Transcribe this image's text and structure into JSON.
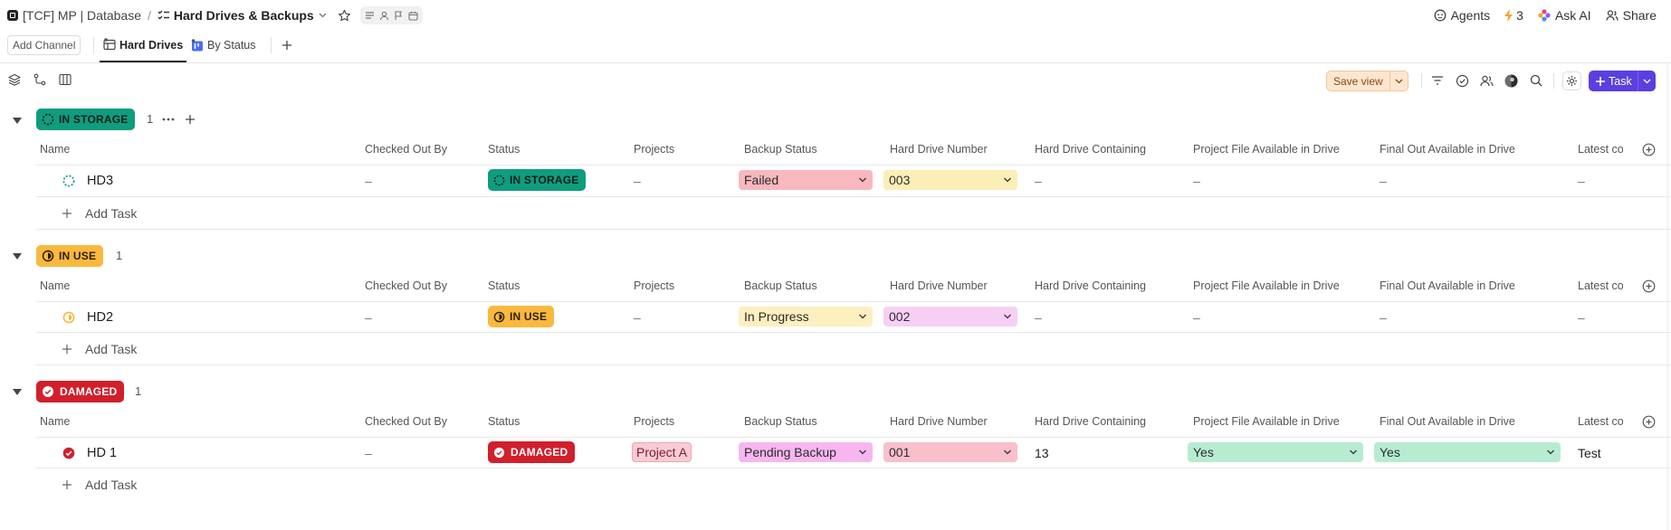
{
  "topbar": {
    "workspace": "[TCF] MP | Database",
    "separator": "/",
    "title": "Hard Drives & Backups",
    "agents_label": "Agents",
    "bolt_count": "3",
    "ask_ai_label": "Ask AI",
    "share_label": "Share"
  },
  "tabs": {
    "add_channel": "Add Channel",
    "items": [
      {
        "label": "Hard Drives",
        "active": true
      },
      {
        "label": "By Status",
        "active": false
      }
    ]
  },
  "toolbar": {
    "save_view": "Save view",
    "task_button": "Task"
  },
  "columns": [
    "Name",
    "Checked Out By",
    "Status",
    "Projects",
    "Backup Status",
    "Hard Drive Number",
    "Hard Drive Containing",
    "Project File Available in Drive",
    "Final Out Available in Drive",
    "Latest com"
  ],
  "groups": [
    {
      "status": "IN STORAGE",
      "count": "1",
      "color": "#0f9d7e",
      "task": {
        "name": "HD3",
        "checked_out_by": "–",
        "status": "IN STORAGE",
        "projects": "–",
        "backup_status": "Failed",
        "backup_color": "#f8b8bd",
        "drive_number": "003",
        "drive_color": "#fbefb7",
        "containing": "–",
        "project_file": "–",
        "final_out": "–",
        "latest": "–"
      },
      "add_task": "Add Task"
    },
    {
      "status": "IN USE",
      "count": "1",
      "color": "#f9b93e",
      "task": {
        "name": "HD2",
        "checked_out_by": "–",
        "status": "IN USE",
        "projects": "–",
        "backup_status": "In Progress",
        "backup_color": "#fcefc0",
        "drive_number": "002",
        "drive_color": "#f8cff4",
        "containing": "–",
        "project_file": "–",
        "final_out": "–",
        "latest": "–"
      },
      "add_task": "Add Task"
    },
    {
      "status": "DAMAGED",
      "count": "1",
      "color": "#d21f2c",
      "task": {
        "name": "HD 1",
        "checked_out_by": "–",
        "status": "DAMAGED",
        "projects": "Project A",
        "backup_status": "Pending Backup",
        "backup_color": "#f7b6ef",
        "drive_number": "001",
        "drive_color": "#f9bfcb",
        "containing": "13",
        "project_file": "Yes",
        "final_out": "Yes",
        "latest": "Test"
      },
      "add_task": "Add Task"
    }
  ]
}
